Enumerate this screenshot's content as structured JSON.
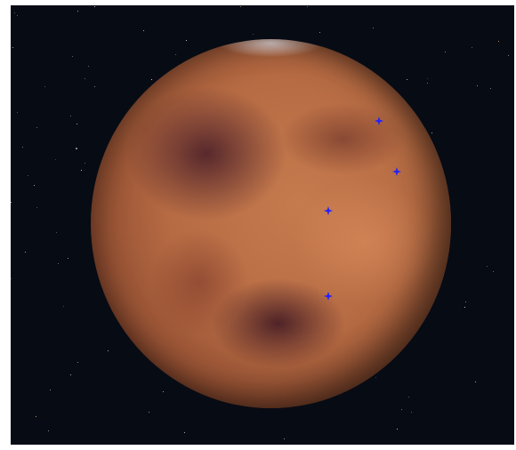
{
  "scene": {
    "background_color": "#070b14",
    "planet_color": "#b66b43",
    "marker_color": "#2222ff",
    "markers": [
      {
        "name": "marker-1"
      },
      {
        "name": "marker-2"
      },
      {
        "name": "marker-3"
      },
      {
        "name": "marker-4"
      }
    ]
  }
}
